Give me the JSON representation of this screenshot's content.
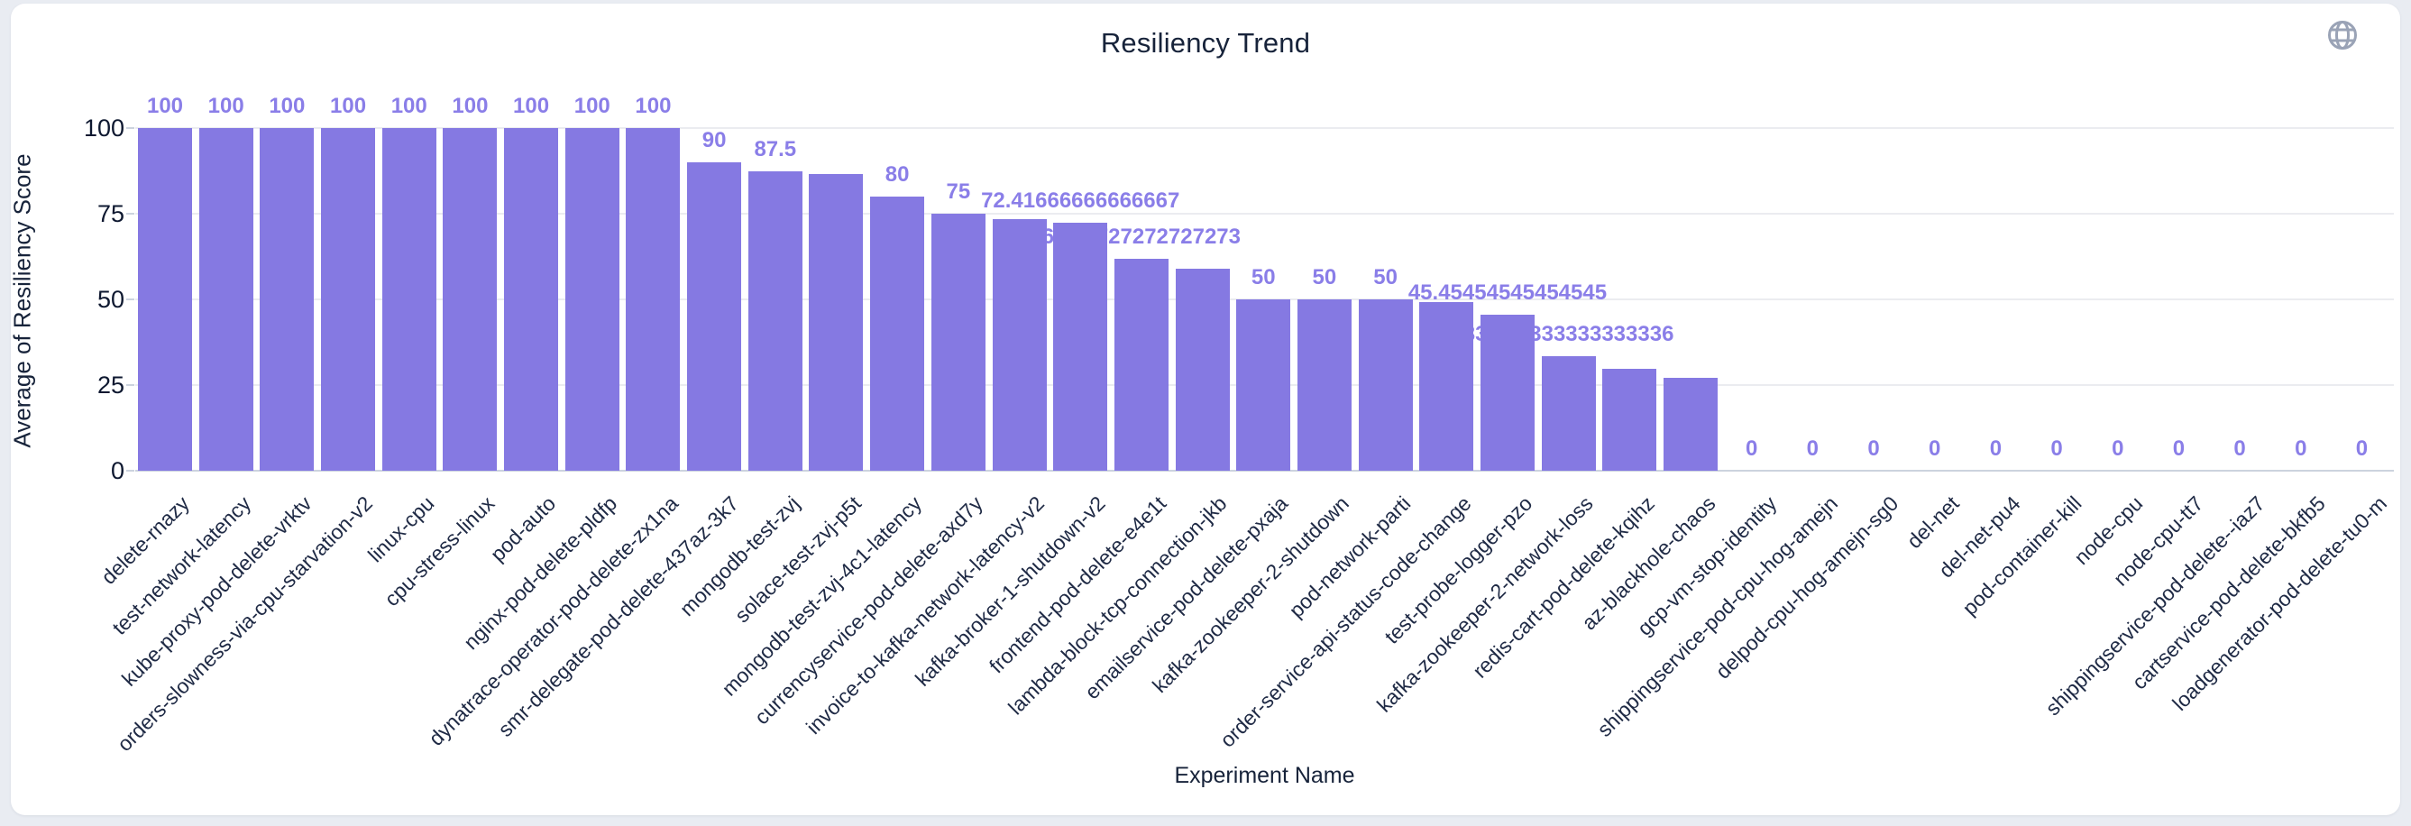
{
  "header": {
    "title": "Resiliency Trend",
    "globe_icon": "globe-icon"
  },
  "colors": {
    "bar": "#8579e2",
    "value_label": "#8a7ee8",
    "axis_text": "#0e1830",
    "category_text": "#1f2a45",
    "grid": "#ebecf0",
    "baseline": "#ccd3de",
    "card_bg": "#ffffff",
    "page_bg": "#e9ecf2",
    "icon_gray": "#9aa3b6"
  },
  "chart_data": {
    "type": "bar",
    "title": "Resiliency Trend",
    "xlabel": "Experiment Name",
    "ylabel": "Average of Resiliency Score",
    "ylim": [
      0,
      100
    ],
    "yticks": [
      0,
      25,
      50,
      75,
      100
    ],
    "grid": true,
    "legend": false,
    "categories": [
      "delete-rnazy",
      "test-network-latency",
      "kube-proxy-pod-delete-vrktv",
      "orders-slowness-via-cpu-starvation-v2",
      "linux-cpu",
      "cpu-stress-linux",
      "pod-auto",
      "nginx-pod-delete-pldfp",
      "dynatrace-operator-pod-delete-zx1na",
      "smr-delegate-pod-delete-437az-3k7",
      "mongodb-test-zvj",
      "solace-test-zvj-p5t",
      "mongodb-test-zvj-4c1-latency",
      "currencyservice-pod-delete-axd7y",
      "invoice-to-kafka-network-latency-v2",
      "kafka-broker-1-shutdown-v2",
      "frontend-pod-delete-e4e1t",
      "lambda-block-tcp-connection-jkb",
      "emailservice-pod-delete-pxaja",
      "kafka-zookeeper-2-shutdown",
      "pod-network-parti",
      "order-service-api-status-code-change",
      "test-probe-logger-pzo",
      "kafka-zookeeper-2-network-loss",
      "redis-cart-pod-delete-kqihz",
      "az-blackhole-chaos",
      "gcp-vm-stop-identity",
      "shippingservice-pod-cpu-hog-amejn",
      "delpod-cpu-hog-amejn-sg0",
      "del-net",
      "del-net-pu4",
      "pod-container-kill",
      "node-cpu",
      "node-cpu-tt7",
      "shippingservice-pod-delete--iaz7",
      "cartservice-pod-delete-bkfb5",
      "loadgenerator-pod-delete-tu0-m"
    ],
    "values": [
      100,
      100,
      100,
      100,
      100,
      100,
      100,
      100,
      100,
      90,
      87.5,
      86.6,
      80,
      75,
      73.4,
      72.41666666666667,
      61.72727272727273,
      58.9,
      50,
      50,
      50,
      49.2,
      45.45454545454545,
      33.333333333333336,
      29.7,
      27.1,
      0,
      0,
      0,
      0,
      0,
      0,
      0,
      0,
      0,
      0,
      0
    ],
    "bar_labels": [
      "100",
      "100",
      "100",
      "100",
      "100",
      "100",
      "100",
      "100",
      "100",
      "90",
      "87.5",
      "",
      "80",
      "75",
      "",
      "72.41666666666667",
      "61.72727272727273",
      "",
      "50",
      "50",
      "50",
      "",
      "45.45454545454545",
      "33.333333333333336",
      "",
      "",
      "0",
      "0",
      "0",
      "0",
      "0",
      "0",
      "0",
      "0",
      "0",
      "0",
      "0"
    ]
  }
}
